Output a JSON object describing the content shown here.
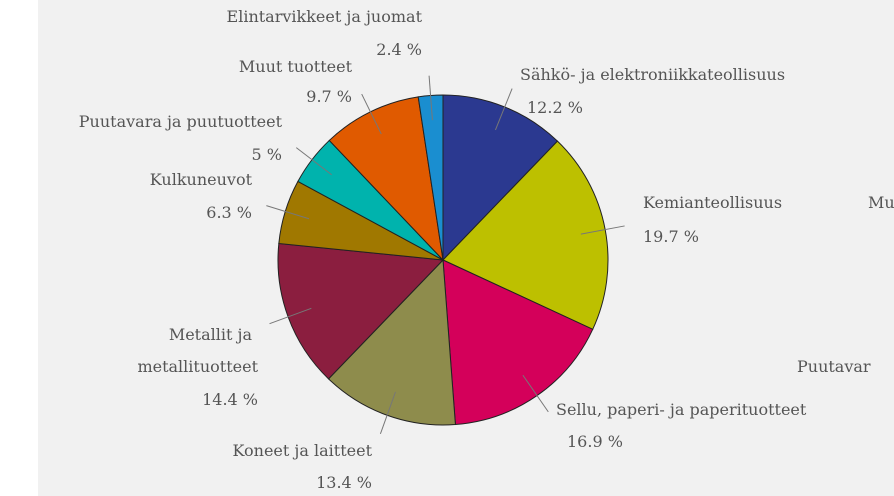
{
  "chart_data": {
    "type": "pie",
    "categories": [
      "Sähkö- ja elektroniikkateollisuus",
      "Kemianteollisuus",
      "Sellu, paperi- ja paperituotteet",
      "Koneet ja laitteet",
      "Metallit ja metallituotteet",
      "Kulkuneuvot",
      "Puutavara ja puutuotteet",
      "Muut tuotteet",
      "Elintarvikkeet ja juomat"
    ],
    "values": [
      12.2,
      19.7,
      16.9,
      13.4,
      14.4,
      6.3,
      5,
      9.7,
      2.4
    ],
    "value_labels": [
      "12.2 %",
      "19.7 %",
      "16.9 %",
      "13.4 %",
      "14.4 %",
      "6.3 %",
      "5 %",
      "9.7 %",
      "2.4 %"
    ],
    "colors": [
      "#2b3990",
      "#bdc000",
      "#d4005a",
      "#8e8c4c",
      "#8b1e3f",
      "#a07800",
      "#00b3ad",
      "#e05a00",
      "#1a8ed0"
    ],
    "annotations": [
      "Mu",
      "Puutavar"
    ]
  }
}
